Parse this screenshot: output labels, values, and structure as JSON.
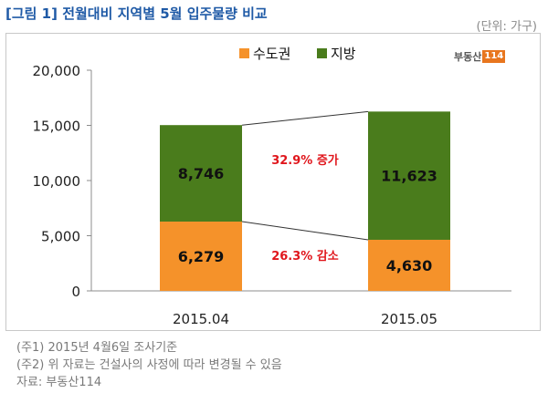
{
  "header": {
    "title": "[그림 1] 전월대비 지역별 5월 입주물량 비교",
    "unit": "(단위: 가구)"
  },
  "logo": {
    "text": "부동산",
    "number": "114"
  },
  "notes": [
    "(주1) 2015년 4월6일 조사기준",
    "(주2) 위 자료는 건설사의 사정에 따라 변경될 수 있음",
    "자료: 부동산114"
  ],
  "colors": {
    "capital": "#f5922a",
    "regional": "#4a7c1c",
    "annotation": "#e0161c"
  },
  "chart_data": {
    "type": "bar",
    "stacked": true,
    "categories": [
      "2015.04",
      "2015.05"
    ],
    "series": [
      {
        "name": "수도권",
        "values": [
          6279,
          4630
        ],
        "labels": [
          "6,279",
          "4,630"
        ]
      },
      {
        "name": "지방",
        "values": [
          8746,
          11623
        ],
        "labels": [
          "8,746",
          "11,623"
        ]
      }
    ],
    "ylim": [
      0,
      20000
    ],
    "yticks": [
      0,
      5000,
      10000,
      15000,
      20000
    ],
    "ytick_labels": [
      "0",
      "5,000",
      "10,000",
      "15,000",
      "20,000"
    ],
    "legend_position": "top",
    "annotations": [
      "32.9% 증가",
      "26.3% 감소"
    ]
  }
}
